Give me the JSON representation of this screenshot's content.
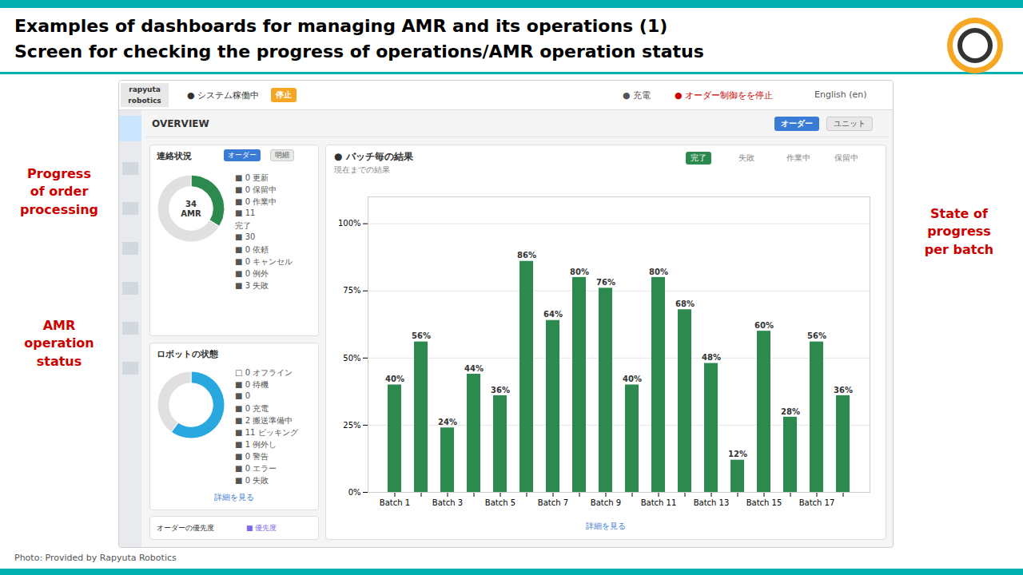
{
  "chart_data": [
    {
      "type": "bar",
      "title": "Examples of dashboards for managing AMR and its operations (1)",
      "subtitle": "Screen for checking the progress of operations/AMR operation status",
      "categories": [
        "Batch 1",
        null,
        "Batch 3",
        null,
        "Batch 5",
        null,
        "Batch 7",
        null,
        "Batch 9",
        null,
        "Batch 11",
        null,
        "Batch 13",
        null,
        "Batch 15",
        null,
        "Batch 17",
        null
      ],
      "values": [
        40,
        56,
        24,
        44,
        36,
        86,
        64,
        80,
        76,
        40,
        80,
        68,
        48,
        12,
        60,
        28,
        56,
        36
      ],
      "value_labels": [
        "40%",
        "56%",
        "24%",
        "44%",
        "36%",
        "86%",
        "64%",
        "80%",
        "76%",
        "40%",
        "80%",
        "68%",
        "48%",
        "12%",
        "60%",
        "28%",
        "56%",
        "36%"
      ],
      "color": "#2d8a4e",
      "ylim": [
        0,
        110
      ],
      "yticks": [
        {
          "value": 0,
          "label": "0%"
        },
        {
          "value": 25,
          "label": "25%"
        },
        {
          "value": 50,
          "label": "50%"
        },
        {
          "value": 75,
          "label": "75%"
        },
        {
          "value": 100,
          "label": "100%"
        }
      ],
      "grid": true,
      "data_labels": true,
      "annotations": [
        "Progress\nof order\nprocessing",
        "AMR\noperation\nstatus",
        "State of\nprogress\nper batch",
        "Photo: Provided by Rapyuta Robotics",
        "rapyuta\nrobotics",
        "● システム稼働中",
        "停止",
        "● 充電",
        "● オーダー制御をを停止",
        "English (en)",
        "OVERVIEW",
        "オーダー",
        "ユニット",
        "● バッチ毎の結果",
        "現在までの結果",
        "完了",
        "失敗",
        "作業中",
        "保留中",
        "詳細を見る"
      ]
    },
    {
      "type": "pie",
      "title": "連絡状況",
      "values": [
        34,
        66
      ],
      "colors": [
        "#2d8a4e",
        "#e0e0e0"
      ],
      "annotations": [
        "オーダー",
        "明細",
        "34\nAMR",
        "■ 0 更新",
        "■ 0 保留中",
        "■ 0 作業中",
        "■ 11",
        "完了",
        "■ 30",
        "■ 0 依頼",
        "■ 0 キャンセル",
        "■ 0 例外",
        "■ 3 失敗"
      ]
    },
    {
      "type": "pie",
      "title": "ロボットの状態",
      "values": [
        60,
        40
      ],
      "colors": [
        "#29a8e0",
        "#e0e0e0"
      ],
      "annotations": [
        "□ 0 オフライン",
        "■ 0 待機",
        "■ 0",
        "■ 0 充電",
        "■ 2 搬送準備中",
        "■ 11 ピッキング",
        "■ 1 例外し",
        "■ 0 警告",
        "■ 0 エラー",
        "■ 0 失敗",
        "詳細を見る",
        "オーダーの優先度",
        "■ 優先度"
      ]
    }
  ]
}
